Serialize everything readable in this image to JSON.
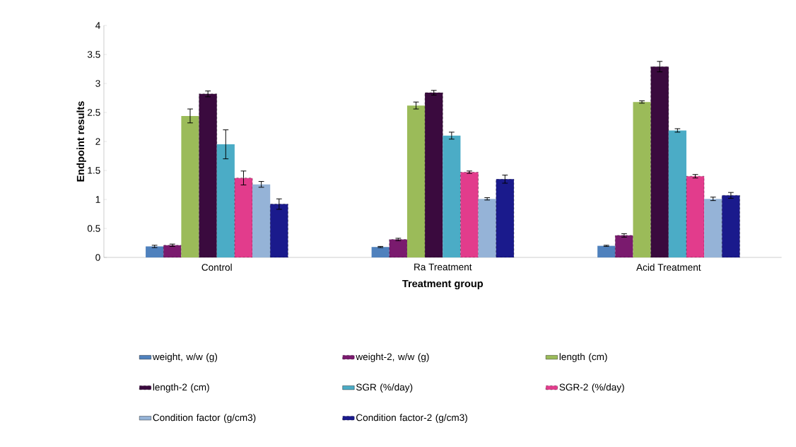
{
  "chart_data": {
    "type": "bar",
    "xlabel": "Treatment group",
    "ylabel": "Endpoint results",
    "categories": [
      "Control",
      "Ra Treatment",
      "Acid Treatment"
    ],
    "ylim": [
      0,
      4
    ],
    "yticks": [
      0,
      0.5,
      1,
      1.5,
      2,
      2.5,
      3,
      3.5,
      4
    ],
    "grid": false,
    "legend": "bottom",
    "series": [
      {
        "name": "weight, w/w (g)",
        "color": "#4f81bd",
        "values": [
          0.19,
          0.18,
          0.2
        ],
        "errors": [
          0.02,
          0.01,
          0.01
        ]
      },
      {
        "name": "weight-2, w/w (g)",
        "color": "#7a1a6e",
        "line_style": "dashed",
        "values": [
          0.21,
          0.31,
          0.38
        ],
        "errors": [
          0.02,
          0.02,
          0.03
        ]
      },
      {
        "name": "length (cm)",
        "color": "#9bbb59",
        "values": [
          2.44,
          2.62,
          2.68
        ],
        "errors": [
          0.12,
          0.06,
          0.02
        ]
      },
      {
        "name": "length-2 (cm)",
        "color": "#3a0a3e",
        "line_style": "dashed",
        "values": [
          2.82,
          2.84,
          3.29
        ],
        "errors": [
          0.05,
          0.04,
          0.09
        ]
      },
      {
        "name": "SGR (%/day)",
        "color": "#4bacc6",
        "values": [
          1.95,
          2.1,
          2.19
        ],
        "errors": [
          0.25,
          0.06,
          0.03
        ]
      },
      {
        "name": "SGR-2 (%/day)",
        "color": "#e23c8c",
        "line_style": "dashed",
        "values": [
          1.37,
          1.47,
          1.4
        ],
        "errors": [
          0.12,
          0.02,
          0.03
        ]
      },
      {
        "name": "Condition factor (g/cm3)",
        "color": "#95b3d7",
        "values": [
          1.26,
          1.01,
          1.01
        ],
        "errors": [
          0.05,
          0.02,
          0.03
        ]
      },
      {
        "name": "Condition factor-2 (g/cm3)",
        "color": "#1a1a8c",
        "line_style": "dashed",
        "values": [
          0.92,
          1.35,
          1.07
        ],
        "errors": [
          0.09,
          0.07,
          0.05
        ]
      }
    ]
  }
}
